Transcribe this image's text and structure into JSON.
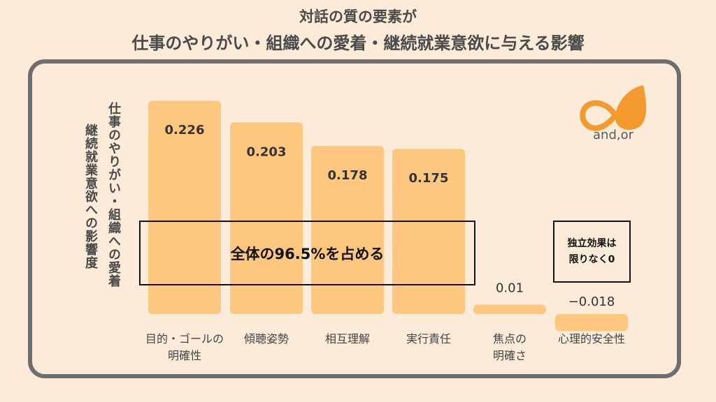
{
  "title": {
    "line1": "対話の質の要素が",
    "line2": "仕事のやりがい・組織への愛着・継続就業意欲に与える影響"
  },
  "y_axis": {
    "line1": "仕事のやりがい・組織への愛着",
    "line2": "継続就業意欲への影響度"
  },
  "callouts": {
    "main": "全体の96.5%を占める",
    "side_line1": "独立効果は",
    "side_line2": "限りなく0"
  },
  "logo": {
    "text": "and,or",
    "icon": "infinity-drop-icon",
    "color": "#F29A2E"
  },
  "colors": {
    "bar": "#FDC780",
    "background": "#FBEBD8",
    "frame": "#6E6E6E"
  },
  "chart_data": {
    "type": "bar",
    "categories": [
      "目的・ゴールの\n明確性",
      "傾聴姿勢",
      "相互理解",
      "実行責任",
      "焦点の\n明確さ",
      "心理的安全性"
    ],
    "values": [
      0.226,
      0.203,
      0.178,
      0.175,
      0.01,
      -0.018
    ],
    "value_labels": [
      "0.226",
      "0.203",
      "0.178",
      "0.175",
      "0.01",
      "−0.018"
    ],
    "title": "対話の質の要素が 仕事のやりがい・組織への愛着・継続就業意欲に与える影響",
    "xlabel": "",
    "ylabel": "仕事のやりがい・組織への愛着 継続就業意欲への影響度",
    "grid": false
  }
}
